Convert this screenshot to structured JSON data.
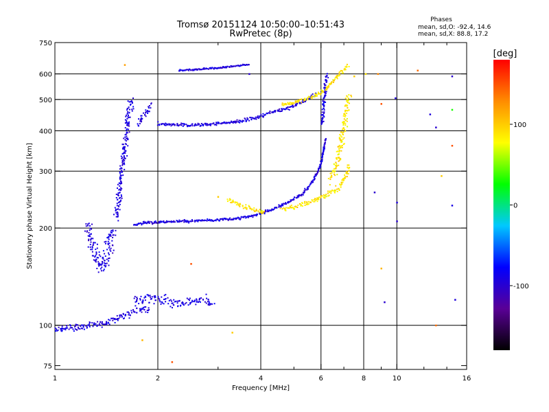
{
  "chart_data": {
    "type": "scatter",
    "title": "Tromsø 20151124 10:50:00–10:51:43",
    "subtitle": "RwPretec (8p)",
    "xlabel": "Frequency [MHz]",
    "ylabel": "Stationary phase Virtual Height [km]",
    "x_scale": "log",
    "y_scale": "log",
    "xlim": [
      1,
      16
    ],
    "ylim": [
      73,
      750
    ],
    "x_ticks": [
      {
        "value": 1,
        "label": "1"
      },
      {
        "value": 2,
        "label": "2"
      },
      {
        "value": 4,
        "label": "4"
      },
      {
        "value": 6,
        "label": "6"
      },
      {
        "value": 8,
        "label": "8"
      },
      {
        "value": 10,
        "label": "10"
      },
      {
        "value": 16,
        "label": "16"
      }
    ],
    "x_minor_ticks": [
      3,
      5,
      7,
      9,
      12,
      14
    ],
    "x_gridlines": [
      2,
      4,
      6,
      8,
      10
    ],
    "y_ticks": [
      {
        "value": 75,
        "label": "75"
      },
      {
        "value": 100,
        "label": "100"
      },
      {
        "value": 200,
        "label": "200"
      },
      {
        "value": 300,
        "label": "300"
      },
      {
        "value": 400,
        "label": "400"
      },
      {
        "value": 500,
        "label": "500"
      },
      {
        "value": 600,
        "label": "600"
      },
      {
        "value": 750,
        "label": "750"
      }
    ],
    "y_gridlines": [
      100,
      200,
      300,
      400,
      500,
      600
    ],
    "grid": true,
    "stats": {
      "heading": "Phases",
      "line1": "mean, sd,O:  -92.4, 14.6",
      "line2": "mean, sd,X:  88.8, 17.2"
    },
    "colorbar": {
      "label": "[deg]",
      "range": [
        -180,
        180
      ],
      "ticks": [
        {
          "value": 100,
          "label": "100"
        },
        {
          "value": 0,
          "label": "0"
        },
        {
          "value": -100,
          "label": "-100"
        }
      ],
      "colormap": [
        "#000000",
        "#5a0096",
        "#0000ff",
        "#00c8ff",
        "#00ff00",
        "#ffff00",
        "#ff8c00",
        "#ff0000"
      ]
    },
    "series": [
      {
        "mode": "O",
        "phase_mean": -92.4,
        "phase_sd": 14.6,
        "traces": [
          {
            "x": [
              1.0,
              1.1,
              1.2,
              1.3,
              1.4,
              1.5,
              1.6,
              1.7,
              1.8,
              1.9
            ],
            "y": [
              97,
              98,
              99,
              100,
              102,
              104,
              107,
              110,
              112,
              112
            ],
            "spread": 0.025
          },
          {
            "x": [
              1.7,
              1.9,
              2.1,
              2.3,
              2.5,
              2.7,
              2.9
            ],
            "y": [
              118,
              122,
              120,
              116,
              118,
              120,
              116
            ],
            "spread": 0.04
          },
          {
            "x": [
              1.25,
              1.28,
              1.32,
              1.36,
              1.4,
              1.44,
              1.48
            ],
            "y": [
              205,
              180,
              160,
              150,
              155,
              175,
              200
            ],
            "spread": 0.05
          },
          {
            "x": [
              1.52,
              1.55,
              1.58,
              1.61,
              1.64,
              1.67
            ],
            "y": [
              215,
              260,
              320,
              380,
              440,
              500
            ],
            "spread": 0.03
          },
          {
            "x": [
              1.7,
              1.8,
              1.9,
              2.1,
              2.4,
              2.8,
              3.3,
              3.8,
              4.3,
              4.8,
              5.3,
              5.7,
              6.0,
              6.2
            ],
            "y": [
              205,
              207,
              208,
              209,
              210,
              211,
              213,
              218,
              228,
              240,
              255,
              280,
              315,
              380
            ],
            "spread": 0.01
          },
          {
            "x": [
              6.05,
              6.1,
              6.15,
              6.2,
              6.25
            ],
            "y": [
              420,
              470,
              520,
              570,
              600
            ],
            "spread": 0.015
          },
          {
            "x": [
              2.0,
              2.2,
              2.5,
              2.8,
              3.1,
              3.5,
              3.9,
              4.3,
              4.8,
              5.3,
              5.8
            ],
            "y": [
              420,
              418,
              416,
              418,
              422,
              428,
              440,
              455,
              470,
              490,
              520
            ],
            "spread": 0.012
          },
          {
            "x": [
              2.3,
              2.5,
              2.8,
              3.1,
              3.4,
              3.7
            ],
            "y": [
              615,
              618,
              622,
              628,
              635,
              642
            ],
            "spread": 0.006
          },
          {
            "x": [
              1.75,
              1.8,
              1.85,
              1.9
            ],
            "y": [
              420,
              440,
              460,
              480
            ],
            "spread": 0.03
          }
        ]
      },
      {
        "mode": "X",
        "phase_mean": 88.8,
        "phase_sd": 17.2,
        "traces": [
          {
            "x": [
              4.6,
              5.0,
              5.4,
              5.8,
              6.2,
              6.6,
              6.9,
              7.1,
              7.3
            ],
            "y": [
              228,
              232,
              238,
              245,
              252,
              262,
              275,
              290,
              310
            ],
            "spread": 0.02
          },
          {
            "x": [
              6.4,
              6.7,
              6.9,
              7.1,
              7.25
            ],
            "y": [
              280,
              320,
              380,
              450,
              520
            ],
            "spread": 0.03
          },
          {
            "x": [
              4.6,
              5.0,
              5.4,
              5.8,
              6.1,
              6.4,
              6.8,
              7.2
            ],
            "y": [
              480,
              490,
              500,
              515,
              530,
              560,
              600,
              640
            ],
            "spread": 0.015
          },
          {
            "x": [
              3.2,
              3.5,
              3.8,
              4.1
            ],
            "y": [
              245,
              235,
              228,
              225
            ],
            "spread": 0.015
          }
        ]
      }
    ],
    "scattered_points": [
      {
        "x": 3.3,
        "y": 95,
        "phase": 100
      },
      {
        "x": 1.6,
        "y": 640,
        "phase": 120
      },
      {
        "x": 1.8,
        "y": 90,
        "phase": 110
      },
      {
        "x": 2.5,
        "y": 155,
        "phase": 150
      },
      {
        "x": 7.5,
        "y": 590,
        "phase": 100
      },
      {
        "x": 8.1,
        "y": 600,
        "phase": 90
      },
      {
        "x": 8.8,
        "y": 600,
        "phase": 130
      },
      {
        "x": 9.0,
        "y": 485,
        "phase": 150
      },
      {
        "x": 9.9,
        "y": 505,
        "phase": -95
      },
      {
        "x": 10.0,
        "y": 210,
        "phase": -100
      },
      {
        "x": 10.0,
        "y": 240,
        "phase": -95
      },
      {
        "x": 8.6,
        "y": 258,
        "phase": -100
      },
      {
        "x": 9.0,
        "y": 150,
        "phase": 110
      },
      {
        "x": 9.2,
        "y": 118,
        "phase": -100
      },
      {
        "x": 11.5,
        "y": 615,
        "phase": 140
      },
      {
        "x": 12.5,
        "y": 450,
        "phase": -95
      },
      {
        "x": 13.0,
        "y": 410,
        "phase": -100
      },
      {
        "x": 13.5,
        "y": 290,
        "phase": 100
      },
      {
        "x": 14.5,
        "y": 590,
        "phase": -100
      },
      {
        "x": 14.5,
        "y": 360,
        "phase": 150
      },
      {
        "x": 14.5,
        "y": 235,
        "phase": -90
      },
      {
        "x": 14.8,
        "y": 120,
        "phase": -95
      },
      {
        "x": 13.0,
        "y": 100,
        "phase": 140
      },
      {
        "x": 14.5,
        "y": 465,
        "phase": 30
      },
      {
        "x": 3.0,
        "y": 250,
        "phase": 100
      },
      {
        "x": 2.2,
        "y": 77,
        "phase": 150
      },
      {
        "x": 3.7,
        "y": 600,
        "phase": -100
      }
    ]
  }
}
